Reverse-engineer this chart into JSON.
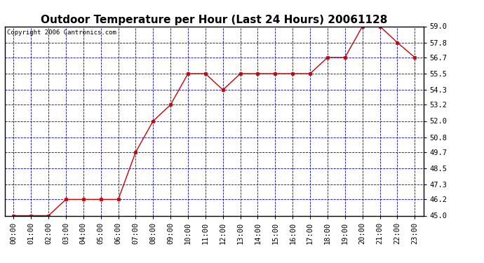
{
  "title": "Outdoor Temperature per Hour (Last 24 Hours) 20061128",
  "copyright": "Copyright 2006 Cantronics.com",
  "hours": [
    "00:00",
    "01:00",
    "02:00",
    "03:00",
    "04:00",
    "05:00",
    "06:00",
    "07:00",
    "08:00",
    "09:00",
    "10:00",
    "11:00",
    "12:00",
    "13:00",
    "14:00",
    "15:00",
    "16:00",
    "17:00",
    "18:00",
    "19:00",
    "20:00",
    "21:00",
    "22:00",
    "23:00"
  ],
  "temps": [
    45.0,
    45.0,
    45.0,
    46.2,
    46.2,
    46.2,
    46.2,
    49.7,
    52.0,
    53.2,
    55.5,
    55.5,
    54.3,
    55.5,
    55.5,
    55.5,
    55.5,
    55.5,
    56.7,
    56.7,
    59.0,
    59.0,
    57.8,
    56.7
  ],
  "ymin": 45.0,
  "ymax": 59.0,
  "yticks": [
    45.0,
    46.2,
    47.3,
    48.5,
    49.7,
    50.8,
    52.0,
    53.2,
    54.3,
    55.5,
    56.7,
    57.8,
    59.0
  ],
  "line_color": "#cc0000",
  "marker_color": "#cc0000",
  "grid_color": "#0000cc",
  "bg_color": "#ffffff",
  "plot_bg_color": "#ffffff",
  "title_fontsize": 11,
  "copyright_fontsize": 6.5,
  "tick_fontsize": 7.5,
  "border_color": "#000000"
}
